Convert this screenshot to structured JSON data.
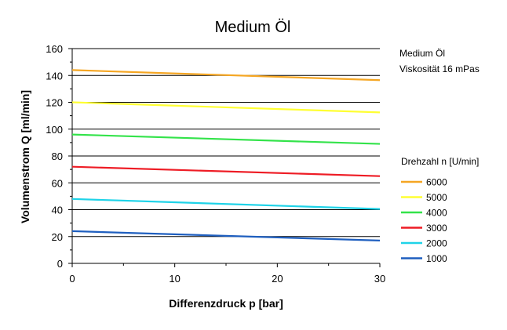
{
  "chart_data": {
    "type": "line",
    "title": "Medium Öl",
    "xlabel": "Differenzdruck p [bar]",
    "ylabel": "Volumenstrom Q [ml/min]",
    "xlim": [
      0,
      30
    ],
    "ylim": [
      0,
      160
    ],
    "xticks": [
      0,
      10,
      20,
      30
    ],
    "yticks": [
      0,
      20,
      40,
      60,
      80,
      100,
      120,
      140,
      160
    ],
    "grid": "horizontal",
    "annotations": [
      "Medium Öl",
      "Viskosität 16 mPas"
    ],
    "legend": {
      "title": "Drehzahl n [U/min]",
      "placement": "right"
    },
    "series": [
      {
        "name": "6000",
        "color": "#f5a623",
        "x": [
          0,
          30
        ],
        "y": [
          144,
          136.5
        ]
      },
      {
        "name": "5000",
        "color": "#ffff33",
        "x": [
          0,
          30
        ],
        "y": [
          120,
          112.5
        ]
      },
      {
        "name": "4000",
        "color": "#33e34a",
        "x": [
          0,
          30
        ],
        "y": [
          96,
          89
        ]
      },
      {
        "name": "3000",
        "color": "#ee1c25",
        "x": [
          0,
          30
        ],
        "y": [
          72,
          65
        ]
      },
      {
        "name": "2000",
        "color": "#1fd3e8",
        "x": [
          0,
          30
        ],
        "y": [
          48,
          40.5
        ]
      },
      {
        "name": "1000",
        "color": "#1f5fbf",
        "x": [
          0,
          30
        ],
        "y": [
          24,
          17
        ]
      }
    ]
  }
}
